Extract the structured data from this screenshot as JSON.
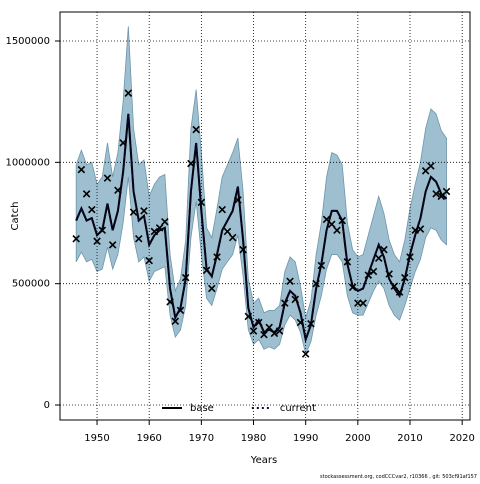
{
  "chart_data": {
    "type": "band-line",
    "xlabel": "Years",
    "ylabel": "Catch",
    "footnote": "stockassessment.org, codCCCvar2, r10366 , git: 503cf91af157",
    "xlim": [
      1942.9,
      2021.5
    ],
    "xticks": [
      1950,
      1960,
      1970,
      1980,
      1990,
      2000,
      2010,
      2020
    ],
    "ylim": [
      -61800,
      1619500
    ],
    "yticks": [
      0,
      500000,
      1000000,
      1500000
    ],
    "grid": true,
    "legend": "bottom",
    "band_color": "#9dbfcf",
    "band_edge": "#6d96ab",
    "observed_color": "#000000",
    "x": [
      1946,
      1947,
      1948,
      1949,
      1950,
      1951,
      1952,
      1953,
      1954,
      1955,
      1956,
      1957,
      1958,
      1959,
      1960,
      1961,
      1962,
      1963,
      1964,
      1965,
      1966,
      1967,
      1968,
      1969,
      1970,
      1971,
      1972,
      1973,
      1974,
      1975,
      1976,
      1977,
      1978,
      1979,
      1980,
      1981,
      1982,
      1983,
      1984,
      1985,
      1986,
      1987,
      1988,
      1989,
      1990,
      1991,
      1992,
      1993,
      1994,
      1995,
      1996,
      1997,
      1998,
      1999,
      2000,
      2001,
      2002,
      2003,
      2004,
      2005,
      2006,
      2007,
      2008,
      2009,
      2010,
      2011,
      2012,
      2013,
      2014,
      2015,
      2016,
      2017
    ],
    "observed": [
      685000,
      970000,
      870000,
      805000,
      675000,
      720000,
      935000,
      660000,
      885000,
      1080000,
      1285000,
      795000,
      685000,
      800000,
      595000,
      715000,
      730000,
      755000,
      425000,
      345000,
      390000,
      525000,
      995000,
      1135000,
      835000,
      555000,
      480000,
      610000,
      805000,
      715000,
      690000,
      845000,
      640000,
      365000,
      305000,
      340000,
      290000,
      320000,
      295000,
      305000,
      420000,
      510000,
      435000,
      340000,
      210000,
      335000,
      500000,
      575000,
      765000,
      745000,
      720000,
      760000,
      590000,
      485000,
      420000,
      420000,
      535000,
      550000,
      605000,
      640000,
      540000,
      490000,
      465000,
      525000,
      610000,
      720000,
      725000,
      965000,
      985000,
      870000,
      860000,
      880000
    ],
    "lower": [
      590000,
      630000,
      590000,
      600000,
      550000,
      560000,
      650000,
      560000,
      620000,
      750000,
      940000,
      690000,
      590000,
      610000,
      510000,
      550000,
      560000,
      570000,
      370000,
      280000,
      310000,
      410000,
      690000,
      840000,
      620000,
      440000,
      410000,
      480000,
      560000,
      590000,
      620000,
      700000,
      530000,
      310000,
      250000,
      270000,
      230000,
      240000,
      230000,
      250000,
      330000,
      370000,
      350000,
      300000,
      210000,
      260000,
      370000,
      450000,
      560000,
      620000,
      620000,
      590000,
      450000,
      380000,
      370000,
      370000,
      420000,
      470000,
      510000,
      480000,
      410000,
      370000,
      350000,
      410000,
      480000,
      550000,
      600000,
      690000,
      730000,
      720000,
      680000,
      660000
    ],
    "upper": [
      990000,
      1050000,
      990000,
      1000000,
      910000,
      940000,
      1080000,
      940000,
      1040000,
      1250000,
      1560000,
      1140000,
      990000,
      1010000,
      860000,
      910000,
      940000,
      950000,
      620000,
      470000,
      520000,
      680000,
      1140000,
      1300000,
      1040000,
      730000,
      690000,
      810000,
      940000,
      990000,
      1040000,
      1100000,
      880000,
      520000,
      420000,
      440000,
      380000,
      390000,
      390000,
      410000,
      550000,
      610000,
      590000,
      490000,
      360000,
      430000,
      620000,
      750000,
      940000,
      1040000,
      1030000,
      990000,
      750000,
      640000,
      610000,
      620000,
      700000,
      780000,
      860000,
      790000,
      680000,
      620000,
      590000,
      680000,
      810000,
      910000,
      1000000,
      1140000,
      1220000,
      1200000,
      1130000,
      1100000
    ],
    "series": [
      {
        "name": "base",
        "color": "#000000",
        "dash": "none",
        "values": [
          760000,
          810000,
          760000,
          770000,
          700000,
          720000,
          830000,
          720000,
          800000,
          960000,
          1200000,
          880000,
          760000,
          780000,
          660000,
          700000,
          720000,
          730000,
          480000,
          360000,
          400000,
          520000,
          880000,
          1080000,
          800000,
          560000,
          530000,
          620000,
          720000,
          760000,
          800000,
          900000,
          680000,
          400000,
          320000,
          350000,
          300000,
          310000,
          300000,
          320000,
          420000,
          470000,
          450000,
          380000,
          270000,
          330000,
          480000,
          580000,
          720000,
          800000,
          800000,
          760000,
          580000,
          490000,
          470000,
          480000,
          540000,
          600000,
          660000,
          610000,
          520000,
          480000,
          450000,
          520000,
          620000,
          700000,
          770000,
          880000,
          940000,
          920000,
          870000,
          850000
        ]
      },
      {
        "name": "current",
        "color": "#0a0a3c",
        "dash": "2,3",
        "values": [
          760000,
          810000,
          760000,
          770000,
          700000,
          720000,
          830000,
          720000,
          800000,
          960000,
          1200000,
          880000,
          760000,
          780000,
          660000,
          700000,
          720000,
          730000,
          480000,
          360000,
          400000,
          520000,
          880000,
          1080000,
          800000,
          560000,
          530000,
          620000,
          720000,
          760000,
          800000,
          900000,
          680000,
          400000,
          320000,
          350000,
          300000,
          310000,
          300000,
          320000,
          420000,
          470000,
          450000,
          380000,
          270000,
          330000,
          480000,
          580000,
          720000,
          800000,
          800000,
          760000,
          580000,
          490000,
          470000,
          480000,
          540000,
          600000,
          660000,
          610000,
          520000,
          480000,
          450000,
          520000,
          620000,
          700000,
          770000,
          880000,
          940000,
          920000,
          870000,
          850000
        ]
      }
    ]
  }
}
